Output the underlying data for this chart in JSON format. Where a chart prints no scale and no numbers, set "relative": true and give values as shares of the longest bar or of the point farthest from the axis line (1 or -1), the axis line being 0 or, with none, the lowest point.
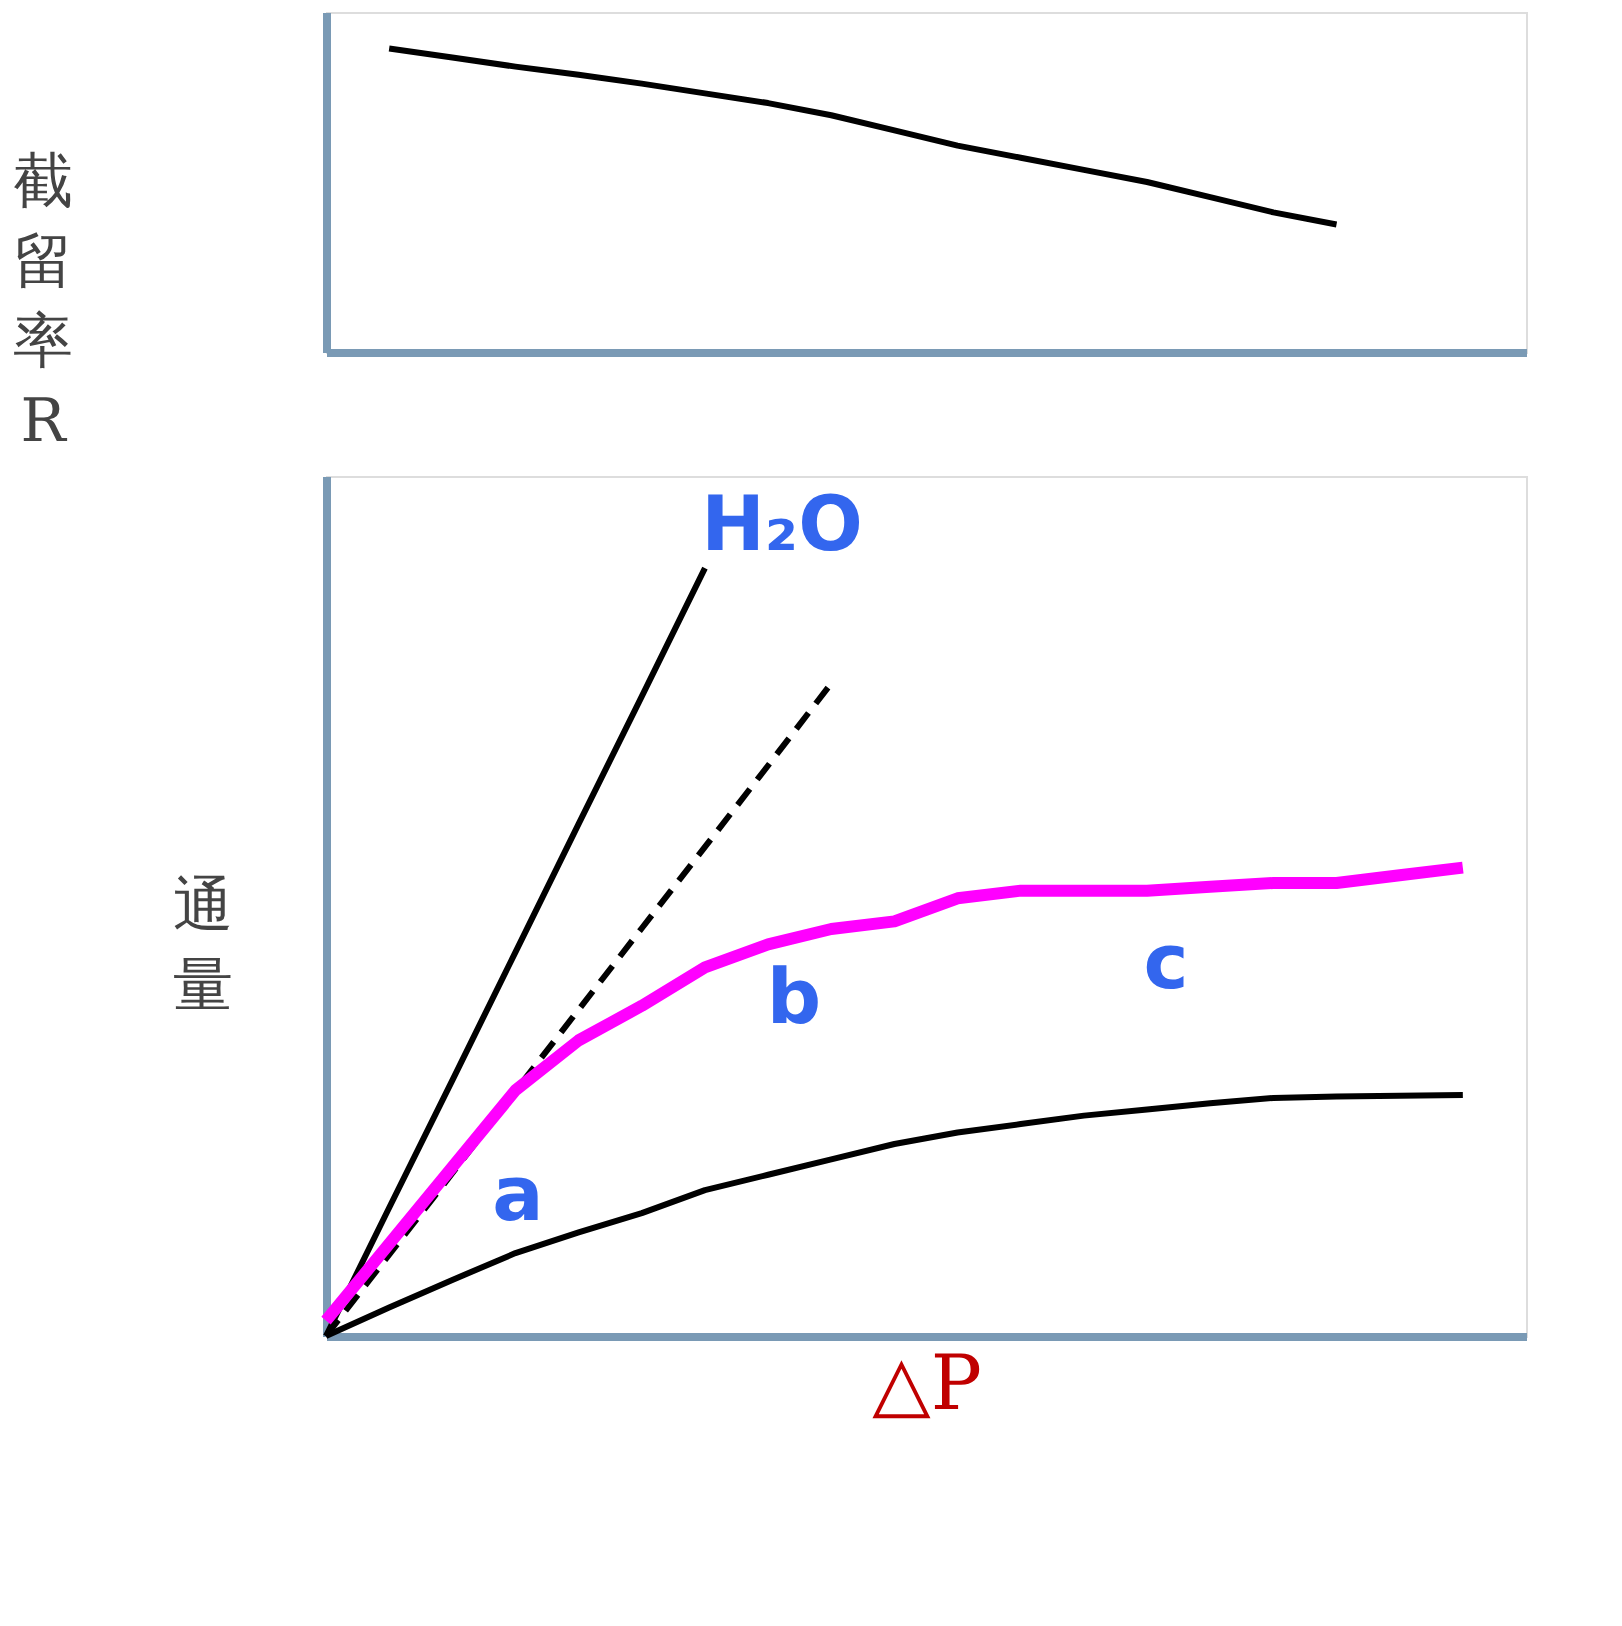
{
  "chart_data": [
    {
      "type": "line",
      "relative": true,
      "ylabel": "截留率R",
      "tick_labels": false,
      "grid": false,
      "categories": [
        null,
        null,
        null,
        null,
        null,
        null,
        null,
        null,
        null,
        null,
        null,
        null,
        null,
        null,
        null,
        null,
        null,
        null,
        null,
        null
      ],
      "series": [
        {
          "color": "#000000",
          "values": [
            null,
            1,
            0.97,
            0.94,
            0.913,
            0.884,
            0.852,
            0.82,
            0.78,
            0.73,
            0.68,
            0.64,
            0.6,
            0.56,
            0.51,
            0.46,
            0.42,
            null,
            null,
            null
          ]
        }
      ]
    },
    {
      "type": "line",
      "relative": true,
      "ylabel": "通量",
      "xlabel": "△P",
      "tick_labels": false,
      "grid": false,
      "categories": [
        null,
        null,
        null,
        null,
        null,
        null,
        null,
        null,
        null,
        null,
        null,
        null,
        null,
        null,
        null,
        null,
        null,
        null,
        null,
        null
      ],
      "series": [
        {
          "color": "#000000",
          "values": [
            0,
            0.167,
            0.333,
            0.5,
            0.667,
            0.833,
            1,
            null,
            null,
            null,
            null,
            null,
            null,
            null,
            null,
            null,
            null,
            null,
            null,
            null
          ]
        },
        {
          "color": "#000000",
          "line_style": "dashed",
          "values": [
            0,
            0.106,
            0.212,
            0.319,
            0.425,
            0.531,
            0.637,
            0.743,
            0.85,
            null,
            null,
            null,
            null,
            null,
            null,
            null,
            null,
            null,
            null,
            null
          ]
        },
        {
          "color": "#ff00ff",
          "values": [
            0.02,
            0.12,
            0.22,
            0.32,
            0.385,
            0.43,
            0.48,
            0.51,
            0.53,
            0.54,
            0.57,
            0.58,
            0.58,
            0.58,
            0.585,
            0.59,
            0.59,
            0.6,
            0.61,
            null
          ]
        },
        {
          "color": "#000000",
          "values": [
            0,
            0.037,
            0.073,
            0.108,
            0.135,
            0.16,
            0.19,
            0.21,
            0.23,
            0.25,
            0.265,
            0.276,
            0.287,
            0.295,
            0.303,
            0.31,
            0.312,
            0.313,
            0.314,
            null
          ]
        }
      ],
      "annotations": [
        "H₂O",
        "a",
        "b",
        "c"
      ]
    }
  ]
}
